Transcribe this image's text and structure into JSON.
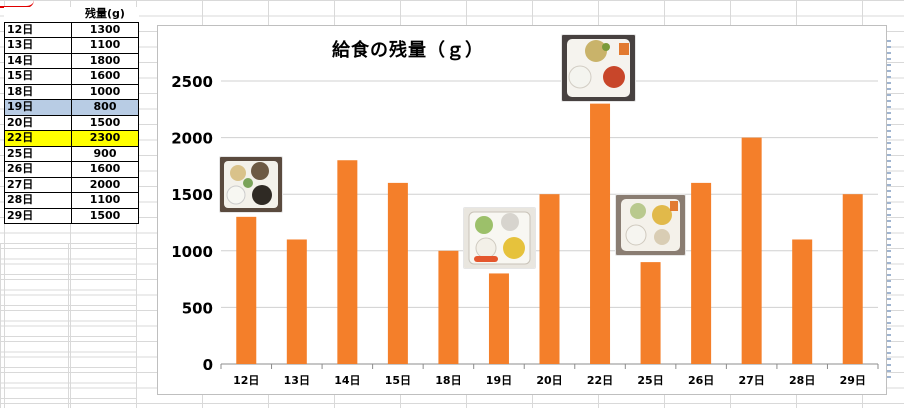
{
  "table": {
    "header": [
      "",
      "残量(g)"
    ],
    "rows": [
      {
        "day": "12日",
        "value": "1300",
        "highlight": ""
      },
      {
        "day": "13日",
        "value": "1100",
        "highlight": ""
      },
      {
        "day": "14日",
        "value": "1800",
        "highlight": ""
      },
      {
        "day": "15日",
        "value": "1600",
        "highlight": ""
      },
      {
        "day": "18日",
        "value": "1000",
        "highlight": ""
      },
      {
        "day": "19日",
        "value": "800",
        "highlight": "blue"
      },
      {
        "day": "20日",
        "value": "1500",
        "highlight": ""
      },
      {
        "day": "22日",
        "value": "2300",
        "highlight": "yellow"
      },
      {
        "day": "25日",
        "value": "900",
        "highlight": ""
      },
      {
        "day": "26日",
        "value": "1600",
        "highlight": ""
      },
      {
        "day": "27日",
        "value": "2000",
        "highlight": ""
      },
      {
        "day": "28日",
        "value": "1100",
        "highlight": ""
      },
      {
        "day": "29日",
        "value": "1500",
        "highlight": ""
      }
    ]
  },
  "chart_data": {
    "type": "bar",
    "title": "給食の残量（ｇ）",
    "xlabel": "",
    "ylabel": "",
    "categories": [
      "12日",
      "13日",
      "14日",
      "15日",
      "18日",
      "19日",
      "20日",
      "22日",
      "25日",
      "26日",
      "27日",
      "28日",
      "29日"
    ],
    "values": [
      1300,
      1100,
      1800,
      1600,
      1000,
      800,
      1500,
      2300,
      900,
      1600,
      2000,
      1100,
      1500
    ],
    "ylim": [
      0,
      2500
    ],
    "yticks": [
      0,
      500,
      1000,
      1500,
      2000,
      2500
    ],
    "grid": true,
    "bar_color": "#f47f2a",
    "legend": "none"
  },
  "colors": {
    "highlight_blue": "#b8cce4",
    "highlight_yellow": "#ffff00",
    "gridline": "#d9d9d9"
  }
}
